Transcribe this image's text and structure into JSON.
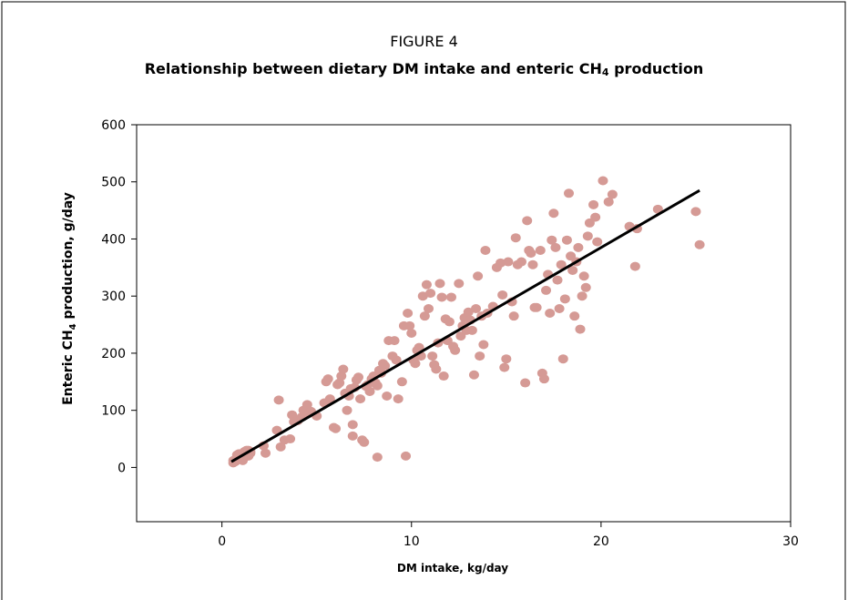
{
  "figure": {
    "label": "FIGURE 4",
    "title_before": "Relationship between dietary DM intake and enteric CH",
    "title_sub": "4",
    "title_after": " production"
  },
  "colors": {
    "points": "#d59a95",
    "trend_line": "#000000",
    "axes": "#000000",
    "frame": "#000000"
  },
  "chart_data": {
    "type": "scatter",
    "title": "Relationship between dietary DM intake and enteric CH4 production",
    "xlabel": "DM intake, kg/day",
    "ylabel_before": "Enteric CH",
    "ylabel_sub": "4",
    "ylabel_after": "  production, g/day",
    "xlim": [
      -4.5,
      30
    ],
    "ylim": [
      -95,
      600
    ],
    "xticks": [
      0,
      10,
      20,
      30
    ],
    "yticks": [
      0,
      100,
      200,
      300,
      400,
      500,
      600
    ],
    "grid": false,
    "trendline": {
      "x": [
        0.5,
        25.2
      ],
      "y": [
        10,
        485
      ]
    },
    "points": [
      [
        0.6,
        12
      ],
      [
        0.7,
        14
      ],
      [
        0.8,
        16
      ],
      [
        0.9,
        18
      ],
      [
        1.0,
        20
      ],
      [
        0.8,
        22
      ],
      [
        1.1,
        25
      ],
      [
        1.2,
        28
      ],
      [
        0.9,
        24
      ],
      [
        1.3,
        30
      ],
      [
        0.7,
        10
      ],
      [
        1.0,
        15
      ],
      [
        1.4,
        20
      ],
      [
        1.5,
        25
      ],
      [
        1.2,
        18
      ],
      [
        0.6,
        8
      ],
      [
        1.1,
        12
      ],
      [
        1.3,
        22
      ],
      [
        1.4,
        30
      ],
      [
        1.5,
        28
      ],
      [
        2.2,
        38
      ],
      [
        2.3,
        25
      ],
      [
        3.0,
        118
      ],
      [
        2.9,
        65
      ],
      [
        3.1,
        36
      ],
      [
        3.3,
        48
      ],
      [
        3.6,
        50
      ],
      [
        3.7,
        92
      ],
      [
        3.8,
        80
      ],
      [
        4.0,
        82
      ],
      [
        4.2,
        88
      ],
      [
        4.3,
        100
      ],
      [
        4.5,
        110
      ],
      [
        4.6,
        95
      ],
      [
        4.7,
        98
      ],
      [
        5.0,
        90
      ],
      [
        5.4,
        113
      ],
      [
        5.5,
        150
      ],
      [
        5.6,
        155
      ],
      [
        5.7,
        120
      ],
      [
        5.9,
        70
      ],
      [
        6.0,
        68
      ],
      [
        6.1,
        145
      ],
      [
        6.2,
        148
      ],
      [
        6.3,
        160
      ],
      [
        6.4,
        172
      ],
      [
        6.5,
        130
      ],
      [
        6.6,
        100
      ],
      [
        6.7,
        125
      ],
      [
        6.8,
        138
      ],
      [
        6.9,
        75
      ],
      [
        6.9,
        55
      ],
      [
        7.0,
        140
      ],
      [
        7.1,
        153
      ],
      [
        7.2,
        158
      ],
      [
        7.3,
        120
      ],
      [
        7.4,
        48
      ],
      [
        7.5,
        44
      ],
      [
        7.6,
        142
      ],
      [
        7.7,
        145
      ],
      [
        7.8,
        133
      ],
      [
        7.9,
        155
      ],
      [
        8.0,
        160
      ],
      [
        8.1,
        148
      ],
      [
        8.2,
        143
      ],
      [
        8.2,
        18
      ],
      [
        8.3,
        170
      ],
      [
        8.4,
        165
      ],
      [
        8.5,
        182
      ],
      [
        8.6,
        178
      ],
      [
        8.7,
        125
      ],
      [
        8.8,
        222
      ],
      [
        9.0,
        195
      ],
      [
        9.1,
        222
      ],
      [
        9.2,
        188
      ],
      [
        9.3,
        120
      ],
      [
        9.5,
        150
      ],
      [
        9.6,
        248
      ],
      [
        9.7,
        20
      ],
      [
        9.8,
        270
      ],
      [
        9.9,
        248
      ],
      [
        10.0,
        235
      ],
      [
        10.1,
        188
      ],
      [
        10.2,
        182
      ],
      [
        10.3,
        205
      ],
      [
        10.4,
        210
      ],
      [
        10.5,
        195
      ],
      [
        10.6,
        300
      ],
      [
        10.7,
        265
      ],
      [
        10.8,
        320
      ],
      [
        10.9,
        278
      ],
      [
        11.0,
        305
      ],
      [
        11.1,
        195
      ],
      [
        11.2,
        180
      ],
      [
        11.3,
        172
      ],
      [
        11.4,
        218
      ],
      [
        11.5,
        322
      ],
      [
        11.6,
        298
      ],
      [
        11.7,
        160
      ],
      [
        11.8,
        260
      ],
      [
        11.9,
        222
      ],
      [
        12.0,
        255
      ],
      [
        12.1,
        298
      ],
      [
        12.2,
        212
      ],
      [
        12.3,
        205
      ],
      [
        12.5,
        322
      ],
      [
        12.6,
        230
      ],
      [
        12.7,
        248
      ],
      [
        12.8,
        262
      ],
      [
        12.9,
        240
      ],
      [
        13.0,
        272
      ],
      [
        13.1,
        258
      ],
      [
        13.2,
        240
      ],
      [
        13.3,
        162
      ],
      [
        13.4,
        278
      ],
      [
        13.5,
        335
      ],
      [
        13.6,
        195
      ],
      [
        13.7,
        265
      ],
      [
        13.8,
        215
      ],
      [
        13.9,
        380
      ],
      [
        14.0,
        270
      ],
      [
        14.3,
        282
      ],
      [
        14.5,
        350
      ],
      [
        14.7,
        358
      ],
      [
        14.8,
        302
      ],
      [
        14.9,
        175
      ],
      [
        15.0,
        190
      ],
      [
        15.1,
        360
      ],
      [
        15.3,
        290
      ],
      [
        15.4,
        265
      ],
      [
        15.5,
        402
      ],
      [
        15.6,
        355
      ],
      [
        15.8,
        360
      ],
      [
        16.0,
        148
      ],
      [
        16.1,
        432
      ],
      [
        16.2,
        380
      ],
      [
        16.3,
        375
      ],
      [
        16.4,
        355
      ],
      [
        16.5,
        280
      ],
      [
        16.6,
        280
      ],
      [
        16.8,
        380
      ],
      [
        16.9,
        165
      ],
      [
        17.0,
        155
      ],
      [
        17.1,
        310
      ],
      [
        17.2,
        338
      ],
      [
        17.3,
        270
      ],
      [
        17.4,
        398
      ],
      [
        17.5,
        445
      ],
      [
        17.6,
        385
      ],
      [
        17.7,
        328
      ],
      [
        17.8,
        278
      ],
      [
        17.9,
        355
      ],
      [
        18.0,
        190
      ],
      [
        18.1,
        295
      ],
      [
        18.2,
        398
      ],
      [
        18.3,
        480
      ],
      [
        18.4,
        370
      ],
      [
        18.5,
        345
      ],
      [
        18.6,
        265
      ],
      [
        18.7,
        360
      ],
      [
        18.8,
        385
      ],
      [
        18.9,
        242
      ],
      [
        19.0,
        300
      ],
      [
        19.1,
        335
      ],
      [
        19.2,
        315
      ],
      [
        19.3,
        405
      ],
      [
        19.4,
        428
      ],
      [
        19.6,
        460
      ],
      [
        19.7,
        438
      ],
      [
        19.8,
        395
      ],
      [
        20.1,
        502
      ],
      [
        20.4,
        465
      ],
      [
        20.6,
        478
      ],
      [
        21.5,
        422
      ],
      [
        21.8,
        352
      ],
      [
        21.9,
        418
      ],
      [
        23.0,
        452
      ],
      [
        25.0,
        448
      ],
      [
        25.2,
        390
      ]
    ]
  }
}
